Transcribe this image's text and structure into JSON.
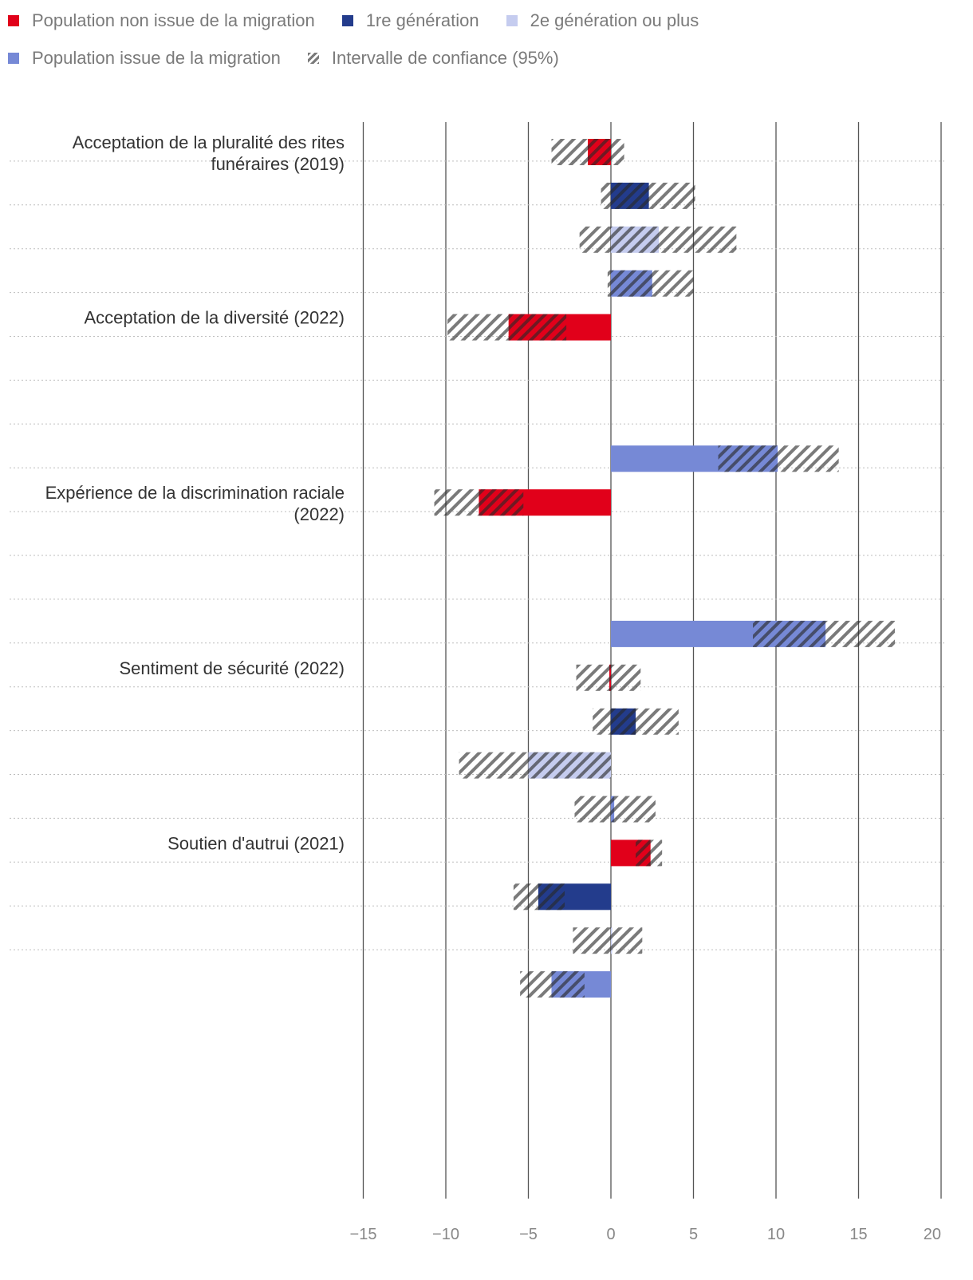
{
  "legend": {
    "items": [
      {
        "label": "Population non issue de la migration",
        "color": "#e1001a",
        "hatch": false
      },
      {
        "label": "1re génération",
        "color": "#233c8c",
        "hatch": false
      },
      {
        "label": "2e génération ou plus",
        "color": "#c5ccef",
        "hatch": false
      },
      {
        "label": "Population issue de la migration",
        "color": "#7689d6",
        "hatch": false
      },
      {
        "label": "Intervalle de confiance (95%)",
        "color": "#777777",
        "hatch": true
      }
    ]
  },
  "chart_data": {
    "type": "bar",
    "orientation": "horizontal",
    "xlim": [
      -15,
      20
    ],
    "xticks": [
      -15,
      -10,
      -5,
      0,
      5,
      10,
      15,
      20
    ],
    "xtick_labels": [
      "−15",
      "−10",
      "−5",
      "0",
      "5",
      "10",
      "15",
      "20"
    ],
    "series": [
      {
        "name": "Population non issue de la migration",
        "color": "#e1001a"
      },
      {
        "name": "1re génération",
        "color": "#233c8c"
      },
      {
        "name": "2e génération ou plus",
        "color": "#c5ccef"
      },
      {
        "name": "Population issue de la migration",
        "color": "#7689d6"
      }
    ],
    "groups": [
      {
        "label": [
          "Acceptation de la pluralité des rites",
          "funéraires (2019)"
        ],
        "bars": [
          {
            "series": 0,
            "value": -1.4,
            "ci": [
              -3.6,
              0.8
            ]
          },
          {
            "series": 1,
            "value": 2.3,
            "ci": [
              -0.6,
              5.1
            ]
          },
          {
            "series": 2,
            "value": 2.9,
            "ci": [
              -1.9,
              7.6
            ]
          },
          {
            "series": 3,
            "value": 2.5,
            "ci": [
              -0.2,
              5.0
            ]
          }
        ]
      },
      {
        "label": [
          "Acceptation de la diversité (2022)"
        ],
        "bars": [
          {
            "series": 0,
            "value": -6.2,
            "ci": [
              -9.9,
              -2.7
            ]
          },
          {
            "series": 1,
            "value": null,
            "ci": null
          },
          {
            "series": 2,
            "value": null,
            "ci": null
          },
          {
            "series": 3,
            "value": 10.1,
            "ci": [
              6.5,
              13.8
            ]
          }
        ]
      },
      {
        "label": [
          "Expérience de la discrimination raciale",
          "(2022)"
        ],
        "bars": [
          {
            "series": 0,
            "value": -8.0,
            "ci": [
              -10.7,
              -5.3
            ]
          },
          {
            "series": 1,
            "value": null,
            "ci": null
          },
          {
            "series": 2,
            "value": null,
            "ci": null
          },
          {
            "series": 3,
            "value": 13.0,
            "ci": [
              8.6,
              17.2
            ]
          }
        ]
      },
      {
        "label": [
          "Sentiment de sécurité (2022)"
        ],
        "bars": [
          {
            "series": 0,
            "value": -0.1,
            "ci": [
              -2.1,
              1.8
            ]
          },
          {
            "series": 1,
            "value": 1.5,
            "ci": [
              -1.1,
              4.1
            ]
          },
          {
            "series": 2,
            "value": -5.0,
            "ci": [
              -9.2,
              0.0
            ]
          },
          {
            "series": 3,
            "value": 0.2,
            "ci": [
              -2.2,
              2.7
            ]
          }
        ]
      },
      {
        "label": [
          "Soutien d'autrui (2021)"
        ],
        "bars": [
          {
            "series": 0,
            "value": 2.4,
            "ci": [
              1.5,
              3.1
            ]
          },
          {
            "series": 1,
            "value": -4.4,
            "ci": [
              -5.9,
              -2.8
            ]
          },
          {
            "series": 2,
            "value": 0.0,
            "ci": [
              -2.3,
              1.9
            ]
          },
          {
            "series": 3,
            "value": -3.6,
            "ci": [
              -5.5,
              -1.6
            ]
          }
        ]
      }
    ]
  }
}
